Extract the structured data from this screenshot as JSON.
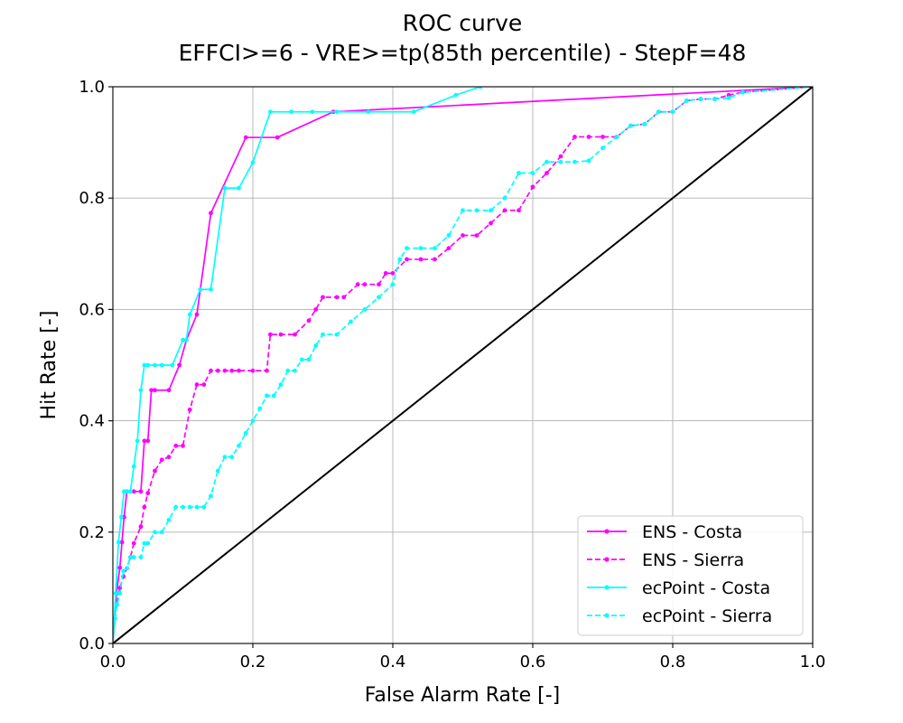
{
  "chart_data": {
    "type": "line",
    "title": "ROC curve",
    "subtitle": "EFFCI>=6 - VRE>=tp(85th percentile) - StepF=48",
    "xlabel": "False Alarm Rate [-]",
    "ylabel": "Hit Rate [-]",
    "xlim": [
      0.0,
      1.0
    ],
    "ylim": [
      0.0,
      1.0
    ],
    "xticks": [
      "0.0",
      "0.2",
      "0.4",
      "0.6",
      "0.8",
      "1.0"
    ],
    "yticks": [
      "0.0",
      "0.2",
      "0.4",
      "0.6",
      "0.8",
      "1.0"
    ],
    "grid": true,
    "legend_position": "lower-right",
    "series": [
      {
        "name": "ENS - Costa",
        "color": "#ff00ff",
        "dash": "solid",
        "x": [
          0.0,
          0.005,
          0.01,
          0.013,
          0.016,
          0.02,
          0.03,
          0.04,
          0.045,
          0.05,
          0.055,
          0.06,
          0.08,
          0.095,
          0.105,
          0.12,
          0.14,
          0.19,
          0.235,
          0.315,
          1.0
        ],
        "y": [
          0.0,
          0.09,
          0.136,
          0.182,
          0.227,
          0.273,
          0.273,
          0.273,
          0.364,
          0.364,
          0.455,
          0.455,
          0.455,
          0.5,
          0.545,
          0.591,
          0.773,
          0.909,
          0.909,
          0.955,
          1.0
        ]
      },
      {
        "name": "ENS - Sierra",
        "color": "#ff00ff",
        "dash": "dashed",
        "x": [
          0.0,
          0.005,
          0.01,
          0.015,
          0.02,
          0.025,
          0.03,
          0.04,
          0.045,
          0.05,
          0.06,
          0.07,
          0.08,
          0.09,
          0.1,
          0.11,
          0.12,
          0.13,
          0.14,
          0.15,
          0.16,
          0.17,
          0.18,
          0.2,
          0.22,
          0.225,
          0.24,
          0.26,
          0.28,
          0.29,
          0.3,
          0.32,
          0.33,
          0.35,
          0.36,
          0.38,
          0.39,
          0.4,
          0.42,
          0.44,
          0.46,
          0.48,
          0.5,
          0.52,
          0.54,
          0.56,
          0.58,
          0.6,
          0.62,
          0.64,
          0.66,
          0.68,
          0.7,
          0.72,
          0.74,
          0.76,
          0.78,
          0.8,
          0.82,
          0.84,
          0.86,
          0.88,
          0.9,
          1.0
        ],
        "y": [
          0.0,
          0.07,
          0.1,
          0.12,
          0.135,
          0.155,
          0.18,
          0.21,
          0.245,
          0.27,
          0.31,
          0.33,
          0.335,
          0.355,
          0.355,
          0.42,
          0.465,
          0.465,
          0.49,
          0.49,
          0.49,
          0.49,
          0.49,
          0.49,
          0.49,
          0.555,
          0.555,
          0.555,
          0.58,
          0.6,
          0.622,
          0.622,
          0.622,
          0.645,
          0.645,
          0.645,
          0.665,
          0.665,
          0.69,
          0.69,
          0.69,
          0.71,
          0.733,
          0.733,
          0.755,
          0.778,
          0.778,
          0.82,
          0.845,
          0.875,
          0.91,
          0.91,
          0.91,
          0.91,
          0.93,
          0.933,
          0.955,
          0.955,
          0.975,
          0.978,
          0.978,
          0.985,
          0.99,
          1.0
        ]
      },
      {
        "name": "ecPoint - Costa",
        "color": "#00ffff",
        "dash": "solid",
        "x": [
          0.0,
          0.004,
          0.008,
          0.012,
          0.016,
          0.02,
          0.025,
          0.03,
          0.035,
          0.04,
          0.045,
          0.05,
          0.06,
          0.07,
          0.085,
          0.1,
          0.105,
          0.11,
          0.125,
          0.14,
          0.16,
          0.18,
          0.2,
          0.225,
          0.255,
          0.285,
          0.32,
          0.365,
          0.43,
          0.49,
          0.525
        ],
        "y": [
          0.0,
          0.09,
          0.182,
          0.227,
          0.273,
          0.273,
          0.273,
          0.318,
          0.364,
          0.455,
          0.5,
          0.5,
          0.5,
          0.5,
          0.5,
          0.545,
          0.545,
          0.591,
          0.636,
          0.636,
          0.818,
          0.818,
          0.864,
          0.955,
          0.955,
          0.955,
          0.955,
          0.955,
          0.955,
          0.985,
          1.0
        ]
      },
      {
        "name": "ecPoint - Sierra",
        "color": "#00ffff",
        "dash": "dashed",
        "x": [
          0.0,
          0.003,
          0.006,
          0.01,
          0.015,
          0.02,
          0.025,
          0.03,
          0.04,
          0.045,
          0.05,
          0.06,
          0.07,
          0.08,
          0.09,
          0.1,
          0.11,
          0.12,
          0.13,
          0.14,
          0.15,
          0.16,
          0.17,
          0.18,
          0.19,
          0.2,
          0.21,
          0.22,
          0.23,
          0.24,
          0.25,
          0.26,
          0.27,
          0.28,
          0.29,
          0.3,
          0.32,
          0.34,
          0.36,
          0.38,
          0.4,
          0.41,
          0.42,
          0.44,
          0.46,
          0.48,
          0.5,
          0.52,
          0.54,
          0.56,
          0.58,
          0.6,
          0.62,
          0.64,
          0.66,
          0.68,
          0.7,
          0.72,
          0.74,
          0.76,
          0.78,
          0.8,
          0.82,
          0.84,
          0.86,
          0.88,
          0.9,
          1.0
        ],
        "y": [
          0.0,
          0.045,
          0.07,
          0.09,
          0.13,
          0.135,
          0.155,
          0.155,
          0.155,
          0.18,
          0.18,
          0.2,
          0.2,
          0.222,
          0.245,
          0.245,
          0.245,
          0.245,
          0.245,
          0.265,
          0.31,
          0.335,
          0.335,
          0.355,
          0.378,
          0.4,
          0.422,
          0.445,
          0.445,
          0.465,
          0.49,
          0.49,
          0.51,
          0.51,
          0.535,
          0.555,
          0.555,
          0.578,
          0.6,
          0.622,
          0.645,
          0.69,
          0.71,
          0.71,
          0.71,
          0.733,
          0.778,
          0.778,
          0.778,
          0.8,
          0.845,
          0.845,
          0.865,
          0.865,
          0.865,
          0.867,
          0.89,
          0.91,
          0.93,
          0.933,
          0.955,
          0.955,
          0.975,
          0.978,
          0.978,
          0.98,
          0.99,
          1.0
        ]
      },
      {
        "name": "",
        "color": "#000000",
        "dash": "solid",
        "markers": false,
        "x": [
          0.0,
          1.0
        ],
        "y": [
          0.0,
          1.0
        ]
      }
    ]
  }
}
